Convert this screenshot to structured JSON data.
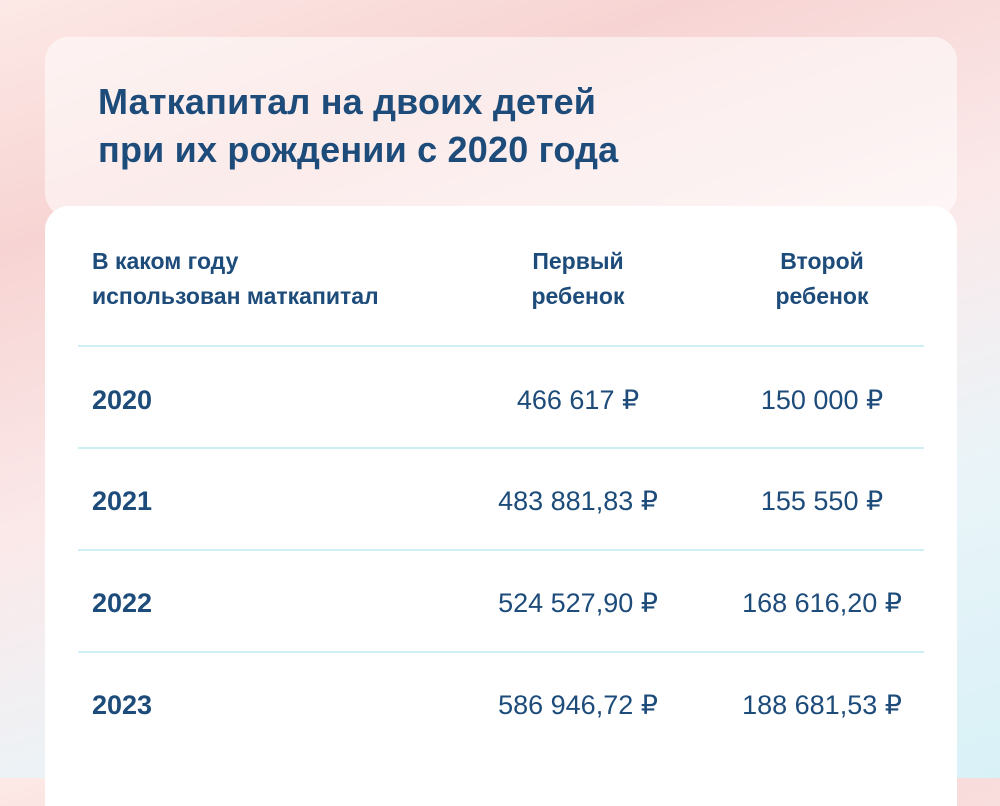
{
  "title": {
    "line1": "Маткапитал на двоих детей",
    "line2": "при их рождении с 2020 года"
  },
  "table": {
    "headers": {
      "year": [
        "В каком году",
        "использован маткапитал"
      ],
      "first": [
        "Первый",
        "ребенок"
      ],
      "second": [
        "Второй",
        "ребенок"
      ]
    },
    "rows": [
      {
        "year": "2020",
        "first": "466 617 ₽",
        "second": "150 000 ₽"
      },
      {
        "year": "2021",
        "first": "483 881,83 ₽",
        "second": "155 550 ₽"
      },
      {
        "year": "2022",
        "first": "524 527,90 ₽",
        "second": "168 616,20 ₽"
      },
      {
        "year": "2023",
        "first": "586 946,72 ₽",
        "second": "188 681,53 ₽"
      }
    ]
  },
  "colors": {
    "text": "#1d4b7a",
    "divider": "#cdeff5"
  }
}
